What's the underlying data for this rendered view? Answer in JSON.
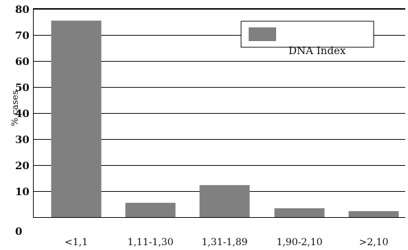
{
  "chart_data": {
    "type": "bar",
    "categories": [
      "<1,1",
      "1,11-1,30",
      "1,31-1,89",
      "1,90-2,10",
      ">2,10"
    ],
    "series": [
      {
        "name": "DNA Index",
        "values": [
          75.5,
          5.5,
          12.3,
          3.4,
          2.3
        ],
        "color": "#808080"
      }
    ],
    "ylabel": "% cases",
    "xlabel": "",
    "ylim": [
      0,
      80
    ],
    "yticks": [
      0,
      10,
      20,
      30,
      40,
      50,
      60,
      70,
      80
    ],
    "grid": true,
    "legend": "top-right"
  }
}
